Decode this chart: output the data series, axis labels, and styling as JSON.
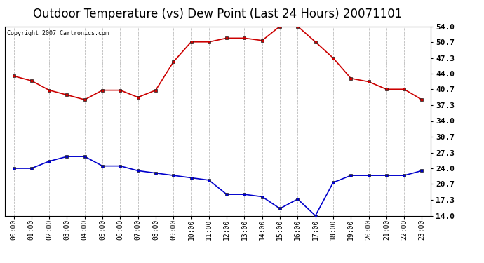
{
  "title": "Outdoor Temperature (vs) Dew Point (Last 24 Hours) 20071101",
  "copyright": "Copyright 2007 Cartronics.com",
  "hours": [
    "00:00",
    "01:00",
    "02:00",
    "03:00",
    "04:00",
    "05:00",
    "06:00",
    "07:00",
    "08:00",
    "09:00",
    "10:00",
    "11:00",
    "12:00",
    "13:00",
    "14:00",
    "15:00",
    "16:00",
    "17:00",
    "18:00",
    "19:00",
    "20:00",
    "21:00",
    "22:00",
    "23:00"
  ],
  "temp": [
    43.5,
    42.5,
    40.5,
    39.5,
    38.5,
    40.5,
    40.5,
    39.0,
    40.5,
    46.5,
    50.7,
    50.7,
    51.5,
    51.5,
    51.0,
    54.0,
    54.0,
    50.7,
    47.3,
    43.0,
    42.3,
    40.7,
    40.7,
    38.5
  ],
  "dew": [
    24.0,
    24.0,
    25.5,
    26.5,
    26.5,
    24.5,
    24.5,
    23.5,
    23.0,
    22.5,
    22.0,
    21.5,
    18.5,
    18.5,
    18.0,
    15.5,
    17.5,
    14.0,
    21.0,
    22.5,
    22.5,
    22.5,
    22.5,
    23.5
  ],
  "temp_color": "#cc0000",
  "dew_color": "#0000cc",
  "bg_color": "#ffffff",
  "grid_color": "#bbbbbb",
  "yticks": [
    14.0,
    17.3,
    20.7,
    24.0,
    27.3,
    30.7,
    34.0,
    37.3,
    40.7,
    44.0,
    47.3,
    50.7,
    54.0
  ],
  "ymin": 14.0,
  "ymax": 54.0,
  "title_fontsize": 12,
  "copyright_fontsize": 6,
  "tick_fontsize": 7,
  "ytick_fontsize": 8
}
